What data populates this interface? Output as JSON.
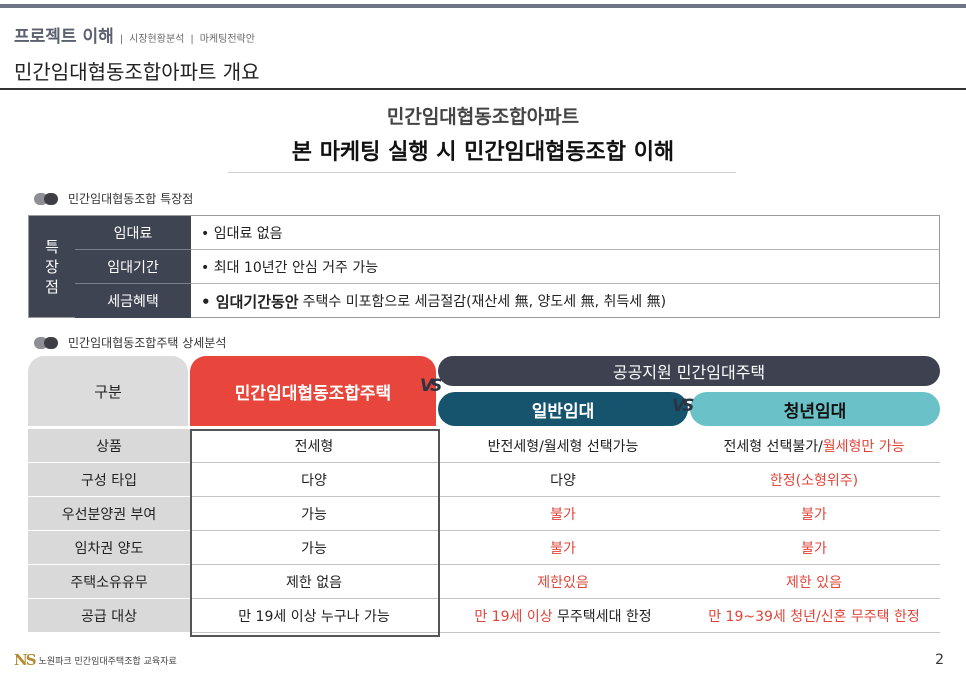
{
  "header": {
    "crumb_main": "프로젝트 이해",
    "crumb_sep": "|",
    "crumb_items": [
      "시장현황분석",
      "마케팅전략안"
    ],
    "page_title": "민간임대협동조합아파트 개요"
  },
  "hero": {
    "subtitle": "민간임대협동조합아파트",
    "title": "본 마케팅 실행 시 민간임대협동조합 이해"
  },
  "features": {
    "section_label": "민간임대협동조합 특장점",
    "side_header": [
      "특",
      "장",
      "점"
    ],
    "rows": [
      {
        "label": "임대료",
        "bold": "",
        "value": "• 임대료 없음"
      },
      {
        "label": "임대기간",
        "bold": "",
        "value": "• 최대 10년간 안심 거주 가능"
      },
      {
        "label": "세금혜택",
        "bold": "• 임대기간동안",
        "value": "주택수 미포함으로 세금절감(재산세 無, 양도세 無, 취득세 無)"
      }
    ]
  },
  "comparison": {
    "section_label": "민간임대협동조합주택 상세분석",
    "header_gubun": "구분",
    "header_coop": "민간임대협동조합주택",
    "header_public": "공공지원 민간임대주택",
    "header_general": "일반임대",
    "header_youth": "청년임대",
    "vs_text": "VS",
    "rows": [
      {
        "label": "상품",
        "coop": "전세형",
        "general": "반전세형/월세형 선택가능",
        "youth_a": "전세형 선택불가/",
        "youth_b": "월세형만 가능"
      },
      {
        "label": "구성 타입",
        "coop": "다양",
        "general": "다양",
        "youth_a": "",
        "youth_b": "한정(소형위주)"
      },
      {
        "label": "우선분양권 부여",
        "coop": "가능",
        "general": "불가",
        "youth_a": "",
        "youth_b": "불가"
      },
      {
        "label": "임차권 양도",
        "coop": "가능",
        "general": "불가",
        "youth_a": "",
        "youth_b": "불가"
      },
      {
        "label": "주택소유유무",
        "coop": "제한 없음",
        "general": "제한있음",
        "youth_a": "",
        "youth_b": "제한 있음"
      },
      {
        "label": "공급 대상",
        "coop": "만 19세 이상 누구나 가능",
        "general_a": "만 19세 이상",
        "general_b": " 무주택세대 한정",
        "youth_a": "",
        "youth_b": "만 19~39세 청년/신혼 무주택 한정"
      }
    ]
  },
  "footer": {
    "logo": "NS",
    "text": "노원파크 민간임대주택조합 교육자료",
    "page_number": "2"
  },
  "colors": {
    "accent_red": "#e8453c",
    "header_dark": "#3f4452",
    "general_blue": "#16546e",
    "youth_teal": "#6ac2c8"
  }
}
